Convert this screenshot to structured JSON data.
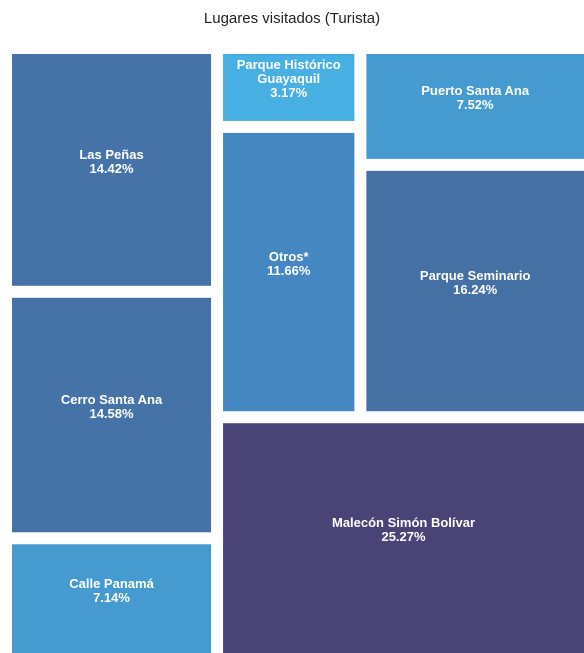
{
  "chart_data": {
    "type": "treemap",
    "title": "Lugares visitados (Turista)",
    "categories": [
      "Malecón Simón Bolívar",
      "Parque Seminario",
      "Cerro Santa Ana",
      "Las Peñas",
      "Otros*",
      "Puerto Santa Ana",
      "Calle Panamá",
      "Parque Histórico Guayaquil"
    ],
    "values": [
      25.27,
      16.24,
      14.58,
      14.42,
      11.66,
      7.52,
      7.14,
      3.17
    ],
    "value_labels": [
      "25.27%",
      "16.24%",
      "14.58%",
      "14.42%",
      "11.66%",
      "7.52%",
      "7.14%",
      "3.17%"
    ],
    "colors": [
      "#4a4476",
      "#4570a3",
      "#4573a8",
      "#4573a8",
      "#4587c0",
      "#459bd0",
      "#459bd0",
      "#47afe1"
    ]
  }
}
